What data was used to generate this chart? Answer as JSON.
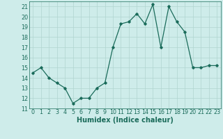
{
  "x": [
    0,
    1,
    2,
    3,
    4,
    5,
    6,
    7,
    8,
    9,
    10,
    11,
    12,
    13,
    14,
    15,
    16,
    17,
    18,
    19,
    20,
    21,
    22,
    23
  ],
  "y": [
    14.5,
    15.0,
    14.0,
    13.5,
    13.0,
    11.5,
    12.0,
    12.0,
    13.0,
    13.5,
    17.0,
    19.3,
    19.5,
    20.3,
    19.3,
    21.2,
    17.0,
    21.0,
    19.5,
    18.5,
    15.0,
    15.0,
    15.2,
    15.2
  ],
  "line_color": "#1a6b5a",
  "marker": "D",
  "marker_size": 1.8,
  "line_width": 0.9,
  "bg_color": "#ceecea",
  "grid_color": "#b0d4d0",
  "tick_label_color": "#1a6b5a",
  "xlabel": "Humidex (Indice chaleur)",
  "xlabel_color": "#1a6b5a",
  "xlabel_fontsize": 7,
  "ylim": [
    11,
    21.5
  ],
  "yticks": [
    11,
    12,
    13,
    14,
    15,
    16,
    17,
    18,
    19,
    20,
    21
  ],
  "xticks": [
    0,
    1,
    2,
    3,
    4,
    5,
    6,
    7,
    8,
    9,
    10,
    11,
    12,
    13,
    14,
    15,
    16,
    17,
    18,
    19,
    20,
    21,
    22,
    23
  ],
  "tick_fontsize": 5.8
}
